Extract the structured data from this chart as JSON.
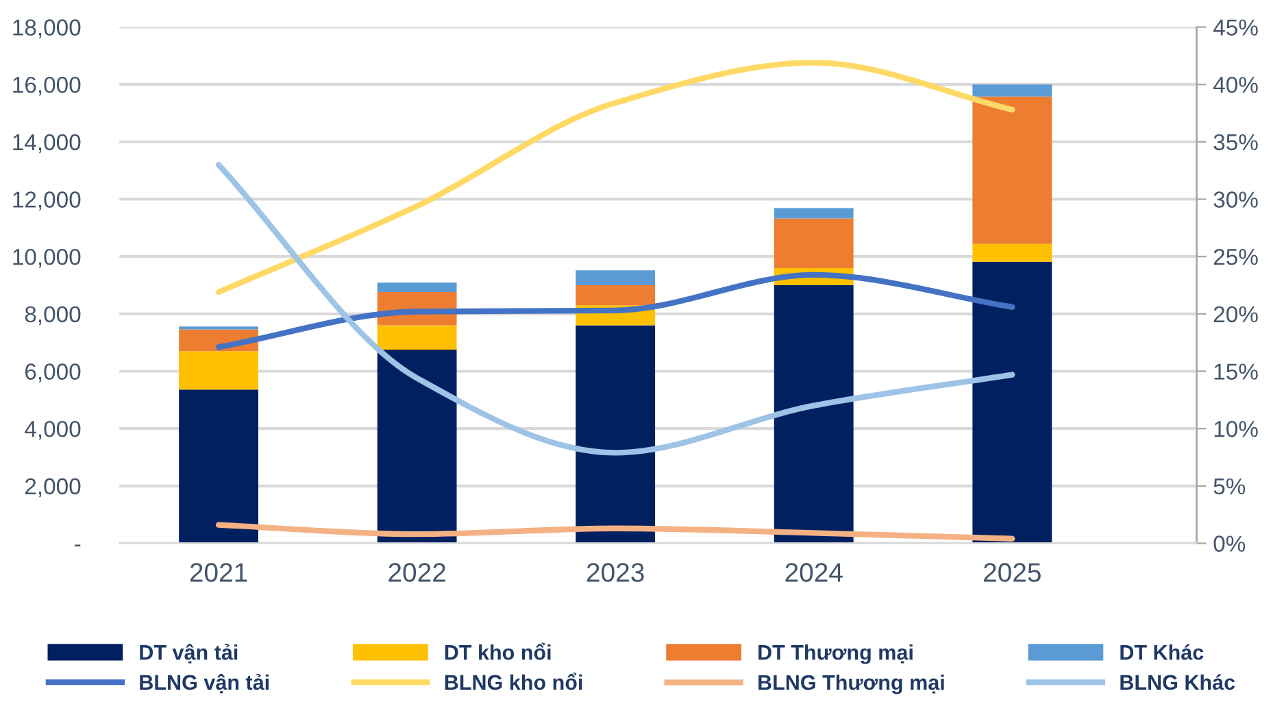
{
  "chart_data": {
    "type": "bar",
    "stacked": true,
    "categories": [
      "2021",
      "2022",
      "2023",
      "2024",
      "2025"
    ],
    "series": [
      {
        "name": "DT vận tải",
        "color": "#002060",
        "values": [
          5360,
          6750,
          7600,
          9000,
          9820
        ]
      },
      {
        "name": "DT kho nổi",
        "color": "#ffc000",
        "values": [
          1340,
          850,
          700,
          600,
          620
        ]
      },
      {
        "name": "DT Thương mại",
        "color": "#ed7d31",
        "values": [
          760,
          1160,
          700,
          1730,
          5140
        ]
      },
      {
        "name": "DT Khác",
        "color": "#5b9bd5",
        "values": [
          100,
          330,
          520,
          360,
          420
        ]
      },
      {
        "name": "BLNG vận tải",
        "type": "line",
        "axis": "y2",
        "color": "#4472c4",
        "values": [
          17.1,
          20.2,
          20.3,
          23.4,
          20.6
        ]
      },
      {
        "name": "BLNG kho nổi",
        "type": "line",
        "axis": "y2",
        "color": "#ffd966",
        "values": [
          21.9,
          29.4,
          38.4,
          41.9,
          37.8
        ]
      },
      {
        "name": "BLNG Thương mại",
        "type": "line",
        "axis": "y2",
        "color": "#f4b183",
        "values": [
          1.6,
          0.8,
          1.3,
          0.9,
          0.4
        ]
      },
      {
        "name": "BLNG Khác",
        "type": "line",
        "axis": "y2",
        "color": "#9dc3e6",
        "values": [
          33.0,
          14.4,
          7.9,
          12.0,
          14.7
        ]
      }
    ],
    "ylim": [
      0,
      18000
    ],
    "yticks": [
      {
        "value": 0,
        "label": "-"
      },
      {
        "value": 2000,
        "label": "2,000"
      },
      {
        "value": 4000,
        "label": "4,000"
      },
      {
        "value": 6000,
        "label": "6,000"
      },
      {
        "value": 8000,
        "label": "8,000"
      },
      {
        "value": 10000,
        "label": "10,000"
      },
      {
        "value": 12000,
        "label": "12,000"
      },
      {
        "value": 14000,
        "label": "14,000"
      },
      {
        "value": 16000,
        "label": "16,000"
      },
      {
        "value": 18000,
        "label": "18,000"
      }
    ],
    "y2lim": [
      0,
      45
    ],
    "y2ticks": [
      {
        "value": 0,
        "label": "0%"
      },
      {
        "value": 5,
        "label": "5%"
      },
      {
        "value": 10,
        "label": "10%"
      },
      {
        "value": 15,
        "label": "15%"
      },
      {
        "value": 20,
        "label": "20%"
      },
      {
        "value": 25,
        "label": "25%"
      },
      {
        "value": 30,
        "label": "30%"
      },
      {
        "value": 35,
        "label": "35%"
      },
      {
        "value": 40,
        "label": "40%"
      },
      {
        "value": 45,
        "label": "45%"
      }
    ],
    "grid": "y",
    "legend": "bottom",
    "marker": "none",
    "line_style": "solid"
  }
}
